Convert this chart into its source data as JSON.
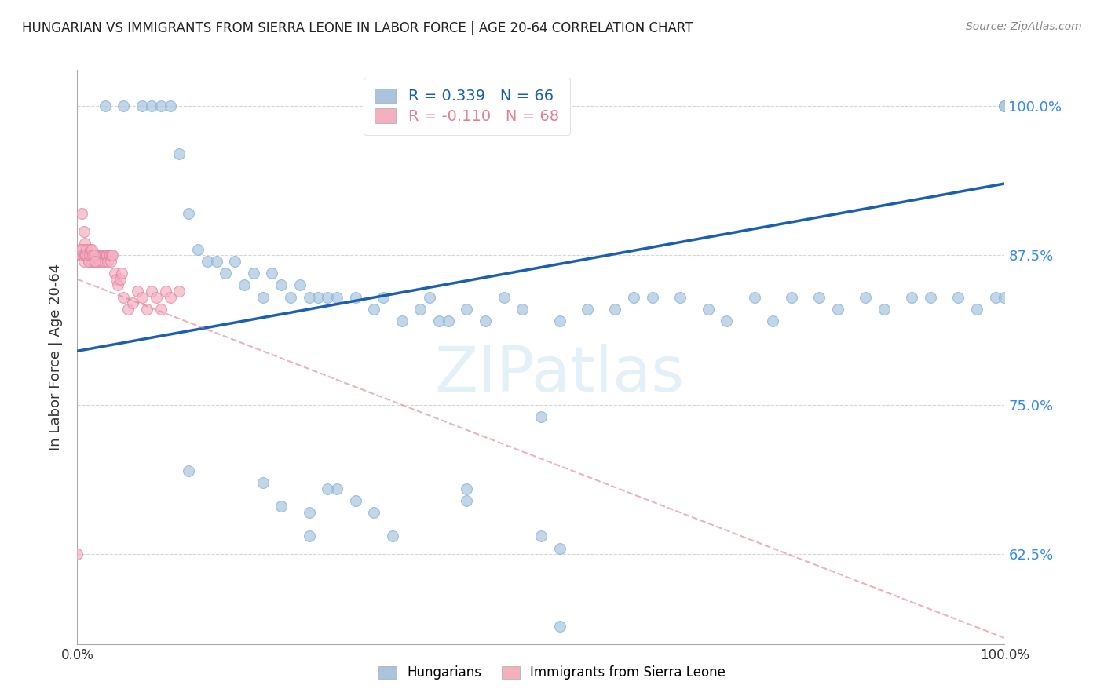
{
  "title": "HUNGARIAN VS IMMIGRANTS FROM SIERRA LEONE IN LABOR FORCE | AGE 20-64 CORRELATION CHART",
  "source": "Source: ZipAtlas.com",
  "ylabel": "In Labor Force | Age 20-64",
  "xlim": [
    0.0,
    1.0
  ],
  "ylim": [
    0.55,
    1.03
  ],
  "yticks": [
    0.625,
    0.75,
    0.875,
    1.0
  ],
  "ytick_labels": [
    "62.5%",
    "75.0%",
    "87.5%",
    "100.0%"
  ],
  "blue_R": 0.339,
  "blue_N": 66,
  "pink_R": -0.11,
  "pink_N": 68,
  "blue_color": "#aac4e0",
  "blue_edge_color": "#7aafd0",
  "pink_color": "#f5b0c0",
  "pink_edge_color": "#e080a0",
  "blue_line_color": "#1a5fb4",
  "pink_line_color": "#e08090",
  "grid_color": "#cccccc",
  "blue_line_x0": 0.0,
  "blue_line_y0": 0.795,
  "blue_line_x1": 1.0,
  "blue_line_y1": 0.935,
  "pink_line_x0": 0.0,
  "pink_line_y0": 0.855,
  "pink_line_x1": 1.0,
  "pink_line_y1": 0.555,
  "blue_x": [
    0.03,
    0.05,
    0.07,
    0.08,
    0.09,
    0.1,
    0.11,
    0.12,
    0.13,
    0.14,
    0.15,
    0.16,
    0.17,
    0.18,
    0.19,
    0.2,
    0.21,
    0.22,
    0.23,
    0.24,
    0.25,
    0.26,
    0.27,
    0.28,
    0.3,
    0.32,
    0.33,
    0.35,
    0.37,
    0.38,
    0.39,
    0.4,
    0.42,
    0.44,
    0.46,
    0.48,
    0.5,
    0.52,
    0.55,
    0.58,
    0.6,
    0.62,
    0.65,
    0.68,
    0.7,
    0.73,
    0.75,
    0.77,
    0.8,
    0.82,
    0.85,
    0.87,
    0.9,
    0.92,
    0.95,
    0.97,
    0.99,
    1.0,
    1.0,
    1.0,
    0.28,
    0.3,
    0.32,
    0.34,
    0.5,
    0.52
  ],
  "blue_y": [
    1.0,
    1.0,
    1.0,
    1.0,
    1.0,
    1.0,
    0.96,
    0.91,
    0.88,
    0.87,
    0.87,
    0.86,
    0.87,
    0.85,
    0.86,
    0.84,
    0.86,
    0.85,
    0.84,
    0.85,
    0.84,
    0.84,
    0.84,
    0.84,
    0.84,
    0.83,
    0.84,
    0.82,
    0.83,
    0.84,
    0.82,
    0.82,
    0.83,
    0.82,
    0.84,
    0.83,
    0.74,
    0.82,
    0.83,
    0.83,
    0.84,
    0.84,
    0.84,
    0.83,
    0.82,
    0.84,
    0.82,
    0.84,
    0.84,
    0.83,
    0.84,
    0.83,
    0.84,
    0.84,
    0.84,
    0.83,
    0.84,
    0.84,
    1.0,
    1.0,
    0.68,
    0.67,
    0.66,
    0.64,
    0.64,
    0.63
  ],
  "pink_x": [
    0.005,
    0.007,
    0.008,
    0.009,
    0.01,
    0.011,
    0.012,
    0.013,
    0.014,
    0.015,
    0.016,
    0.017,
    0.018,
    0.019,
    0.02,
    0.021,
    0.022,
    0.023,
    0.024,
    0.025,
    0.026,
    0.027,
    0.028,
    0.029,
    0.03,
    0.031,
    0.032,
    0.033,
    0.034,
    0.035,
    0.036,
    0.037,
    0.038,
    0.04,
    0.042,
    0.044,
    0.046,
    0.048,
    0.05,
    0.055,
    0.06,
    0.065,
    0.07,
    0.075,
    0.08,
    0.085,
    0.09,
    0.095,
    0.1,
    0.11,
    0.002,
    0.003,
    0.004,
    0.005,
    0.006,
    0.007,
    0.008,
    0.009,
    0.01,
    0.011,
    0.012,
    0.013,
    0.014,
    0.015,
    0.016,
    0.017,
    0.018,
    0.019
  ],
  "pink_y": [
    0.91,
    0.895,
    0.885,
    0.88,
    0.875,
    0.875,
    0.87,
    0.875,
    0.875,
    0.875,
    0.87,
    0.875,
    0.875,
    0.87,
    0.875,
    0.87,
    0.875,
    0.875,
    0.87,
    0.875,
    0.875,
    0.87,
    0.875,
    0.875,
    0.87,
    0.875,
    0.875,
    0.87,
    0.875,
    0.875,
    0.87,
    0.875,
    0.875,
    0.86,
    0.855,
    0.85,
    0.855,
    0.86,
    0.84,
    0.83,
    0.835,
    0.845,
    0.84,
    0.83,
    0.845,
    0.84,
    0.83,
    0.845,
    0.84,
    0.845,
    0.875,
    0.88,
    0.875,
    0.88,
    0.875,
    0.87,
    0.875,
    0.875,
    0.88,
    0.875,
    0.87,
    0.875,
    0.88,
    0.875,
    0.88,
    0.875,
    0.875,
    0.87
  ],
  "pink_outlier_x": [
    0.0
  ],
  "pink_outlier_y": [
    0.625
  ],
  "blue_low_x": [
    0.12,
    0.2,
    0.22,
    0.25,
    0.25,
    0.27,
    0.42,
    0.42
  ],
  "blue_low_y": [
    0.695,
    0.685,
    0.665,
    0.66,
    0.64,
    0.68,
    0.68,
    0.67
  ],
  "blue_very_low_x": [
    0.52
  ],
  "blue_very_low_y": [
    0.565
  ]
}
